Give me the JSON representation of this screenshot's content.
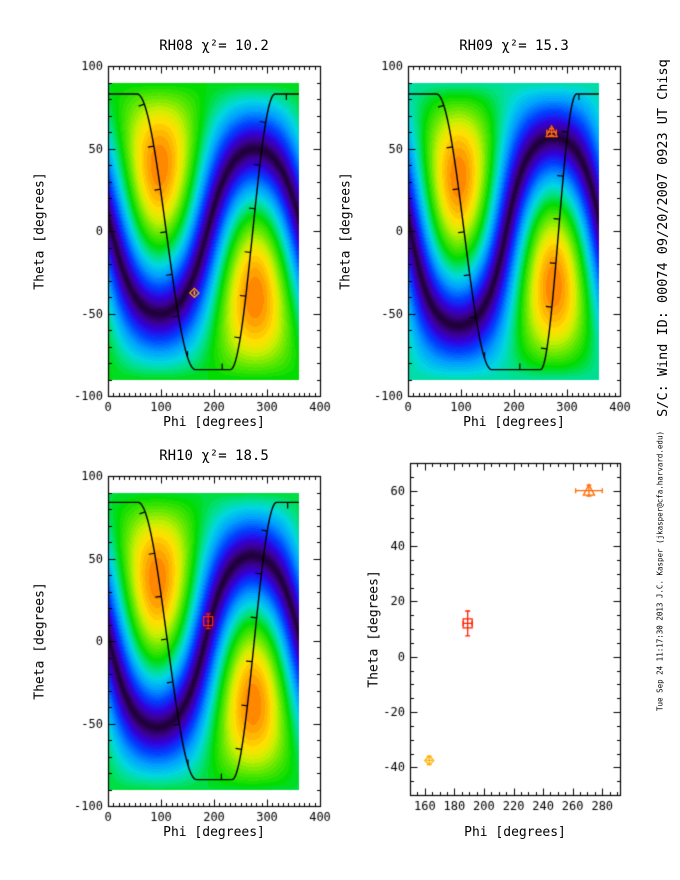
{
  "colors": {
    "background": "#FFFFFF",
    "axis": "#000000",
    "contour_curve": "#000000",
    "marker_diamond": "#FFAF00",
    "marker_square": "#FF2200",
    "marker_triangle": "#FF6A00"
  },
  "colormap": [
    [
      0.0,
      "#200038"
    ],
    [
      0.08,
      "#3C0090"
    ],
    [
      0.16,
      "#3100E0"
    ],
    [
      0.26,
      "#0040FF"
    ],
    [
      0.38,
      "#00A0FF"
    ],
    [
      0.48,
      "#00D8E0"
    ],
    [
      0.56,
      "#00E080"
    ],
    [
      0.64,
      "#00DC00"
    ],
    [
      0.74,
      "#66E800"
    ],
    [
      0.82,
      "#CCF000"
    ],
    [
      0.88,
      "#FFE000"
    ],
    [
      0.94,
      "#FFAE00"
    ],
    [
      1.0,
      "#FF7000"
    ]
  ],
  "annotations": {
    "right_top": "S/C: Wind ID: 00074 09/20/2007  0923 UT Chisq",
    "right_bottom": "Tue Sep 24 11:17:30 2013  J.C. Kasper (jkasper@cfa.harvard.edu)"
  },
  "chart_data": [
    {
      "type": "heatmap",
      "title": "RH08 χ²= 10.2",
      "series_label": "RH08",
      "chi_squared": 10.2,
      "xlabel": "Phi [degrees]",
      "ylabel": "Theta [degrees]",
      "xlim": [
        0,
        400
      ],
      "ylim": [
        -100,
        100
      ],
      "xticks": [
        0,
        100,
        200,
        300,
        400
      ],
      "yticks": [
        -100,
        -50,
        0,
        50,
        100
      ],
      "xminor": 10,
      "yminor": 10,
      "image_extent": {
        "phi": [
          0,
          360
        ],
        "theta": [
          -90,
          90
        ]
      },
      "pattern_axis": {
        "phi": 97,
        "theta": 40
      },
      "curve": {
        "top": 83,
        "bottom": -84,
        "down": 110,
        "dw": 55,
        "up": 273,
        "uw": 42
      },
      "marker": {
        "shape": "diamond",
        "color": "#FFAF00",
        "phi": 163,
        "theta": -37.5,
        "phi_err": 2,
        "theta_err": 1.5
      }
    },
    {
      "type": "heatmap",
      "title": "RH09 χ²= 15.3",
      "series_label": "RH09",
      "chi_squared": 15.3,
      "xlabel": "Phi [degrees]",
      "ylabel": "Theta [degrees]",
      "xlim": [
        0,
        400
      ],
      "ylim": [
        -100,
        100
      ],
      "xticks": [
        0,
        100,
        200,
        300,
        400
      ],
      "yticks": [
        -100,
        -50,
        0,
        50,
        100
      ],
      "xminor": 10,
      "yminor": 10,
      "image_extent": {
        "phi": [
          0,
          360
        ],
        "theta": [
          -90,
          90
        ]
      },
      "pattern_axis": {
        "phi": 95,
        "theta": 33
      },
      "curve": {
        "top": 83,
        "bottom": -84,
        "down": 106,
        "dw": 52,
        "up": 284,
        "uw": 34
      },
      "marker": {
        "shape": "triangle",
        "color": "#FF6A00",
        "phi": 271,
        "theta": 60,
        "phi_err": 9,
        "theta_err": 2
      }
    },
    {
      "type": "heatmap",
      "title": "RH10 χ²= 18.5",
      "series_label": "RH10",
      "chi_squared": 18.5,
      "xlabel": "Phi [degrees]",
      "ylabel": "Theta [degrees]",
      "xlim": [
        0,
        400
      ],
      "ylim": [
        -100,
        100
      ],
      "xticks": [
        0,
        100,
        200,
        300,
        400
      ],
      "yticks": [
        -100,
        -50,
        0,
        50,
        100
      ],
      "xminor": 10,
      "yminor": 10,
      "image_extent": {
        "phi": [
          0,
          360
        ],
        "theta": [
          -90,
          90
        ]
      },
      "pattern_axis": {
        "phi": 93,
        "theta": 38
      },
      "curve": {
        "top": 84,
        "bottom": -84,
        "down": 112,
        "dw": 55,
        "up": 276,
        "uw": 42
      },
      "marker": {
        "shape": "square",
        "color": "#FF2200",
        "phi": 189,
        "theta": 12,
        "phi_err": 3,
        "theta_err": 4.5
      }
    },
    {
      "type": "scatter",
      "title": "",
      "xlabel": "Phi [degrees]",
      "ylabel": "Theta [degrees]",
      "xlim": [
        150,
        292
      ],
      "ylim": [
        -50,
        70
      ],
      "xticks": [
        160,
        180,
        200,
        220,
        240,
        260,
        280
      ],
      "yticks": [
        -40,
        -20,
        0,
        20,
        40,
        60
      ],
      "xminor": 5,
      "yminor": 5,
      "points": [
        {
          "shape": "diamond",
          "color": "#FFAF00",
          "phi": 163,
          "theta": -37.5,
          "phi_err": 2,
          "theta_err": 1.5,
          "source": "RH08"
        },
        {
          "shape": "square",
          "color": "#FF2200",
          "phi": 189,
          "theta": 12,
          "phi_err": 3,
          "theta_err": 4.5,
          "source": "RH10"
        },
        {
          "shape": "triangle",
          "color": "#FF6A00",
          "phi": 271,
          "theta": 60,
          "phi_err": 9,
          "theta_err": 2,
          "source": "RH09"
        }
      ]
    }
  ]
}
